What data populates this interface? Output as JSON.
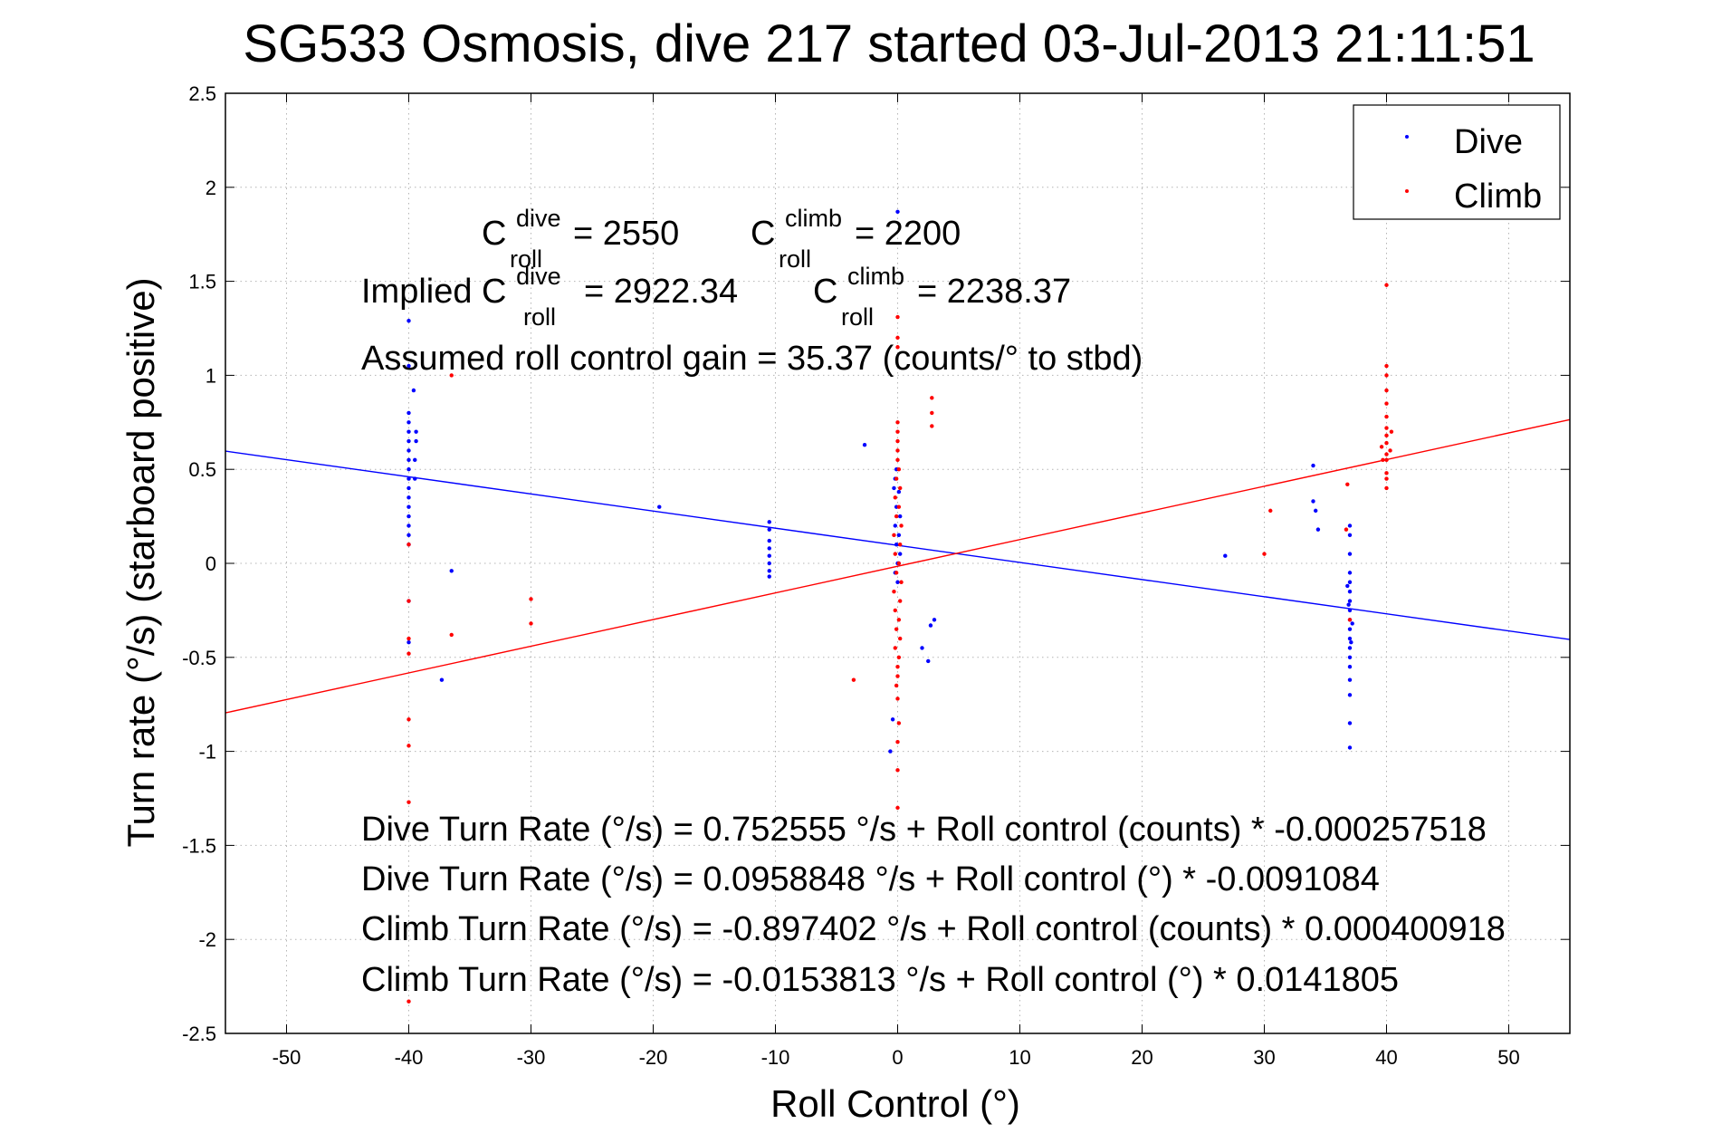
{
  "chart_data": {
    "type": "scatter",
    "title": "SG533 Osmosis, dive 217 started 03-Jul-2013 21:11:51",
    "xlabel": "Roll Control (°)",
    "ylabel": "Turn rate (°/s)  (starboard positive)",
    "xlim": [
      -55,
      55
    ],
    "ylim": [
      -2.5,
      2.5
    ],
    "x_ticks": [
      -50,
      -40,
      -30,
      -20,
      -10,
      0,
      10,
      20,
      30,
      40,
      50
    ],
    "x_tick_labels": [
      "-50",
      "-40",
      "-30",
      "-20",
      "-10",
      "0",
      "10",
      "20",
      "30",
      "40",
      "50"
    ],
    "y_ticks": [
      2.5,
      2,
      1.5,
      1,
      0.5,
      0,
      -0.5,
      -1,
      -1.5,
      -2,
      -2.5
    ],
    "y_tick_labels": [
      "2.5",
      "2",
      "1.5",
      "1",
      "0.5",
      "0",
      "-0.5",
      "-1",
      "-1.5",
      "-2",
      "-2.5"
    ],
    "grid": true,
    "legend_position": "top-right",
    "series": [
      {
        "name": "Dive",
        "color": "#0000ff",
        "points": [
          [
            -40,
            1.29
          ],
          [
            -40,
            1.05
          ],
          [
            -40,
            0.8
          ],
          [
            -40,
            0.75
          ],
          [
            -40,
            0.7
          ],
          [
            -40,
            0.65
          ],
          [
            -40,
            0.6
          ],
          [
            -40,
            0.55
          ],
          [
            -40,
            0.5
          ],
          [
            -40,
            0.45
          ],
          [
            -40,
            0.4
          ],
          [
            -40,
            0.35
          ],
          [
            -40,
            0.3
          ],
          [
            -40,
            0.25
          ],
          [
            -40,
            0.2
          ],
          [
            -40,
            0.15
          ],
          [
            -40,
            0.1
          ],
          [
            -40,
            -0.2
          ],
          [
            -40,
            -0.42
          ],
          [
            -39.6,
            0.92
          ],
          [
            -39.5,
            0.55
          ],
          [
            -39.5,
            0.45
          ],
          [
            -39.4,
            0.7
          ],
          [
            -39.4,
            0.65
          ],
          [
            -36.5,
            -0.04
          ],
          [
            -37.3,
            -0.62
          ],
          [
            -19.5,
            0.3
          ],
          [
            -10.5,
            0.22
          ],
          [
            -10.5,
            0.18
          ],
          [
            -10.5,
            0.12
          ],
          [
            -10.5,
            0.08
          ],
          [
            -10.5,
            0.04
          ],
          [
            -10.5,
            0.0
          ],
          [
            -10.5,
            -0.04
          ],
          [
            -10.5,
            -0.07
          ],
          [
            -2.7,
            0.63
          ],
          [
            0,
            1.87
          ],
          [
            -0.1,
            0.5
          ],
          [
            -0.3,
            0.4
          ],
          [
            -0.2,
            0.45
          ],
          [
            0.1,
            0.38
          ],
          [
            -0.1,
            0.3
          ],
          [
            0.2,
            0.25
          ],
          [
            -0.2,
            0.2
          ],
          [
            0.1,
            0.15
          ],
          [
            -0.1,
            0.1
          ],
          [
            0.2,
            0.05
          ],
          [
            0,
            0.0
          ],
          [
            -0.2,
            -0.05
          ],
          [
            0.1,
            0.0
          ],
          [
            0,
            -0.1
          ],
          [
            -0.4,
            -0.83
          ],
          [
            -0.6,
            -1.0
          ],
          [
            2.5,
            -0.52
          ],
          [
            2.7,
            -0.33
          ],
          [
            3.0,
            -0.3
          ],
          [
            2.0,
            -0.45
          ],
          [
            26.8,
            0.04
          ],
          [
            34.0,
            0.52
          ],
          [
            34.0,
            0.33
          ],
          [
            34.2,
            0.28
          ],
          [
            34.4,
            0.18
          ],
          [
            37,
            0.2
          ],
          [
            37,
            0.15
          ],
          [
            37,
            0.05
          ],
          [
            37,
            -0.05
          ],
          [
            37,
            -0.1
          ],
          [
            37,
            -0.15
          ],
          [
            37,
            -0.2
          ],
          [
            37,
            -0.25
          ],
          [
            37,
            -0.3
          ],
          [
            37,
            -0.35
          ],
          [
            37,
            -0.4
          ],
          [
            37,
            -0.45
          ],
          [
            37,
            -0.5
          ],
          [
            37,
            -0.55
          ],
          [
            37,
            -0.62
          ],
          [
            37,
            -0.7
          ],
          [
            37,
            -0.85
          ],
          [
            37,
            -0.98
          ],
          [
            36.9,
            -0.22
          ],
          [
            37.2,
            -0.32
          ],
          [
            36.8,
            -0.12
          ],
          [
            37.1,
            -0.42
          ]
        ]
      },
      {
        "name": "Climb",
        "color": "#ff0000",
        "points": [
          [
            -40,
            0.1
          ],
          [
            -40,
            -0.2
          ],
          [
            -40,
            -0.4
          ],
          [
            -40,
            -0.48
          ],
          [
            -40,
            -0.83
          ],
          [
            -40,
            -0.97
          ],
          [
            -40,
            -1.27
          ],
          [
            -40,
            -2.33
          ],
          [
            -36.5,
            1.0
          ],
          [
            -36.5,
            -0.38
          ],
          [
            -30,
            -0.19
          ],
          [
            -30,
            -0.32
          ],
          [
            -3.6,
            -0.62
          ],
          [
            0,
            1.31
          ],
          [
            0,
            1.2
          ],
          [
            0,
            1.15
          ],
          [
            0,
            0.75
          ],
          [
            0,
            0.7
          ],
          [
            0,
            0.65
          ],
          [
            0,
            0.6
          ],
          [
            0,
            0.55
          ],
          [
            0.1,
            0.5
          ],
          [
            -0.1,
            0.45
          ],
          [
            0.2,
            0.4
          ],
          [
            -0.2,
            0.35
          ],
          [
            0.1,
            0.3
          ],
          [
            -0.1,
            0.25
          ],
          [
            0.3,
            0.2
          ],
          [
            -0.3,
            0.15
          ],
          [
            0.2,
            0.1
          ],
          [
            -0.2,
            0.05
          ],
          [
            0.1,
            0.0
          ],
          [
            -0.1,
            -0.05
          ],
          [
            0.3,
            -0.1
          ],
          [
            -0.3,
            -0.15
          ],
          [
            0.2,
            -0.2
          ],
          [
            -0.2,
            -0.25
          ],
          [
            0.1,
            -0.3
          ],
          [
            -0.1,
            -0.35
          ],
          [
            0.2,
            -0.4
          ],
          [
            -0.2,
            -0.45
          ],
          [
            0.1,
            -0.5
          ],
          [
            0,
            -0.55
          ],
          [
            0,
            -0.6
          ],
          [
            -0.1,
            -0.65
          ],
          [
            0,
            -0.72
          ],
          [
            0.1,
            -0.85
          ],
          [
            0,
            -0.95
          ],
          [
            0,
            -1.1
          ],
          [
            0,
            -1.3
          ],
          [
            2.8,
            0.88
          ],
          [
            2.8,
            0.8
          ],
          [
            2.8,
            0.73
          ],
          [
            30,
            0.05
          ],
          [
            30.5,
            0.28
          ],
          [
            36.7,
            0.18
          ],
          [
            36.8,
            0.42
          ],
          [
            37,
            -0.3
          ],
          [
            40,
            1.48
          ],
          [
            40,
            1.05
          ],
          [
            40,
            1.0
          ],
          [
            40,
            0.92
          ],
          [
            40,
            0.85
          ],
          [
            40,
            0.78
          ],
          [
            40,
            0.72
          ],
          [
            40,
            0.68
          ],
          [
            40,
            0.64
          ],
          [
            40,
            0.58
          ],
          [
            40,
            0.55
          ],
          [
            40,
            0.48
          ],
          [
            40,
            0.45
          ],
          [
            40,
            0.4
          ],
          [
            39.6,
            0.62
          ],
          [
            39.7,
            0.55
          ],
          [
            40.3,
            0.6
          ],
          [
            40.4,
            0.7
          ]
        ]
      }
    ],
    "fit_lines": [
      {
        "name": "Dive fit",
        "color": "#0000ff",
        "intercept": 0.0958848,
        "slope": -0.0091084
      },
      {
        "name": "Climb fit",
        "color": "#ff0000",
        "intercept": -0.0153813,
        "slope": 0.0141805
      }
    ],
    "annotations": {
      "c_dive_base": "C",
      "c_dive_sup": "dive",
      "c_dive_sub": "roll",
      "c_dive_val": "= 2550",
      "c_climb_base": "C",
      "c_climb_sup": "climb",
      "c_climb_sub": "roll",
      "c_climb_val": "= 2200",
      "implied_prefix": "Implied C",
      "implied_dive_sup": "dive",
      "implied_dive_sub": "roll",
      "implied_dive_val": "= 2922.34",
      "implied_climb_base": "C",
      "implied_climb_sup": "climb",
      "implied_climb_sub": "roll",
      "implied_climb_val": "= 2238.37",
      "gain": "Assumed roll control gain = 35.37 (counts/° to stbd)",
      "eq1": "Dive Turn Rate (°/s) = 0.752555 °/s + Roll control (counts) * -0.000257518",
      "eq2": "Dive Turn Rate (°/s) = 0.0958848 °/s + Roll control (°) * -0.0091084",
      "eq3": "Climb Turn Rate (°/s) = -0.897402 °/s + Roll control (counts) * 0.000400918",
      "eq4": "Climb Turn Rate (°/s) = -0.0153813 °/s + Roll control (°) * 0.0141805"
    }
  }
}
